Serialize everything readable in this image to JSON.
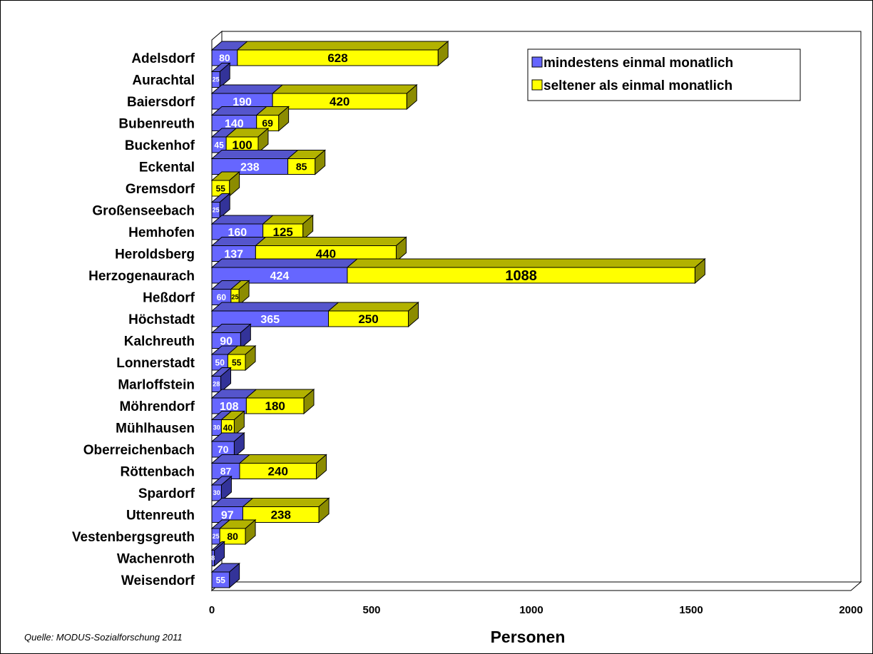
{
  "chart_data": {
    "type": "bar",
    "orientation": "horizontal",
    "stacked": true,
    "three_d": true,
    "categories": [
      "Adelsdorf",
      "Aurachtal",
      "Baiersdorf",
      "Bubenreuth",
      "Buckenhof",
      "Eckental",
      "Gremsdorf",
      "Großenseebach",
      "Hemhofen",
      "Heroldsberg",
      "Herzogenaurach",
      "Heßdorf",
      "Höchstadt",
      "Kalchreuth",
      "Lonnerstadt",
      "Marloffstein",
      "Möhrendorf",
      "Mühlhausen",
      "Oberreichenbach",
      "Röttenbach",
      "Spardorf",
      "Uttenreuth",
      "Vestenbergsgreuth",
      "Wachenroth",
      "Weisendorf"
    ],
    "series": [
      {
        "name": "mindestens einmal monatlich",
        "color": "#6666FF",
        "values": [
          80,
          25,
          190,
          140,
          45,
          238,
          0,
          25,
          160,
          137,
          424,
          60,
          365,
          90,
          50,
          28,
          108,
          30,
          70,
          87,
          30,
          97,
          25,
          8,
          55
        ]
      },
      {
        "name": "seltener als einmal monatlich",
        "color": "#FFFF00",
        "values": [
          628,
          0,
          420,
          69,
          100,
          85,
          55,
          0,
          125,
          440,
          1088,
          25,
          250,
          0,
          55,
          0,
          180,
          40,
          0,
          240,
          0,
          238,
          80,
          0,
          0
        ]
      }
    ],
    "xlabel": "Personen",
    "xlim": [
      0,
      2000
    ],
    "xticks": [
      "0",
      "500",
      "1000",
      "1500",
      "2000"
    ],
    "grid": false,
    "legend_position": "top-right"
  },
  "source_note": "Quelle: MODUS-Sozialforschung 2011"
}
